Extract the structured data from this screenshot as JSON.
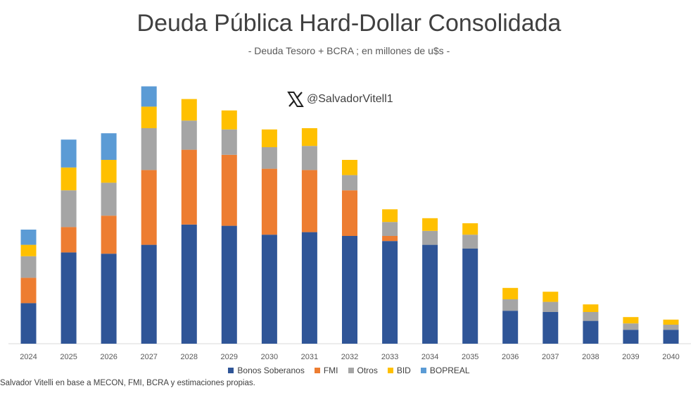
{
  "title": "Deuda Pública Hard-Dollar Consolidada",
  "subtitle": "- Deuda Tesoro + BCRA ; en millones de u$s -",
  "watermark_handle": "@SalvadorVitell1",
  "source": "Salvador Vitelli en base a MECON, FMI, BCRA y estimaciones propias.",
  "colors": {
    "Bonos Soberanos": "#2F5597",
    "FMI": "#ED7D31",
    "Otros": "#A5A5A5",
    "BID": "#FFC000",
    "BOPREAL": "#5B9BD5"
  },
  "chart_data": {
    "type": "bar",
    "stacked": true,
    "title": "Deuda Pública Hard-Dollar Consolidada",
    "subtitle": "- Deuda Tesoro + BCRA ; en millones de u$s -",
    "categories": [
      "2024",
      "2025",
      "2026",
      "2027",
      "2028",
      "2029",
      "2030",
      "2031",
      "2032",
      "2033",
      "2034",
      "2035",
      "2036",
      "2037",
      "2038",
      "2039",
      "2040"
    ],
    "legend_position": "bottom",
    "grid": false,
    "y_axis_visible": false,
    "ylim": [
      0,
      10
    ],
    "series": [
      {
        "name": "Bonos Soberanos",
        "values": [
          1.6,
          3.6,
          3.55,
          3.9,
          4.7,
          4.65,
          4.3,
          4.4,
          4.25,
          4.05,
          3.9,
          3.75,
          1.3,
          1.25,
          0.9,
          0.55,
          0.55
        ]
      },
      {
        "name": "FMI",
        "values": [
          1.0,
          1.0,
          1.5,
          2.95,
          2.95,
          2.8,
          2.6,
          2.45,
          1.8,
          0.2,
          0.0,
          0.0,
          0.0,
          0.0,
          0.0,
          0.0,
          0.0
        ]
      },
      {
        "name": "Otros",
        "values": [
          0.85,
          1.45,
          1.3,
          1.65,
          1.15,
          1.0,
          0.85,
          0.95,
          0.6,
          0.55,
          0.55,
          0.55,
          0.45,
          0.4,
          0.35,
          0.25,
          0.2
        ]
      },
      {
        "name": "BID",
        "values": [
          0.45,
          0.9,
          0.9,
          0.85,
          0.85,
          0.75,
          0.7,
          0.7,
          0.6,
          0.5,
          0.5,
          0.45,
          0.45,
          0.4,
          0.3,
          0.25,
          0.2
        ]
      },
      {
        "name": "BOPREAL",
        "values": [
          0.6,
          1.1,
          1.05,
          0.8,
          0.0,
          0.0,
          0.0,
          0.0,
          0.0,
          0.0,
          0.0,
          0.0,
          0.0,
          0.0,
          0.0,
          0.0,
          0.0
        ]
      }
    ]
  }
}
